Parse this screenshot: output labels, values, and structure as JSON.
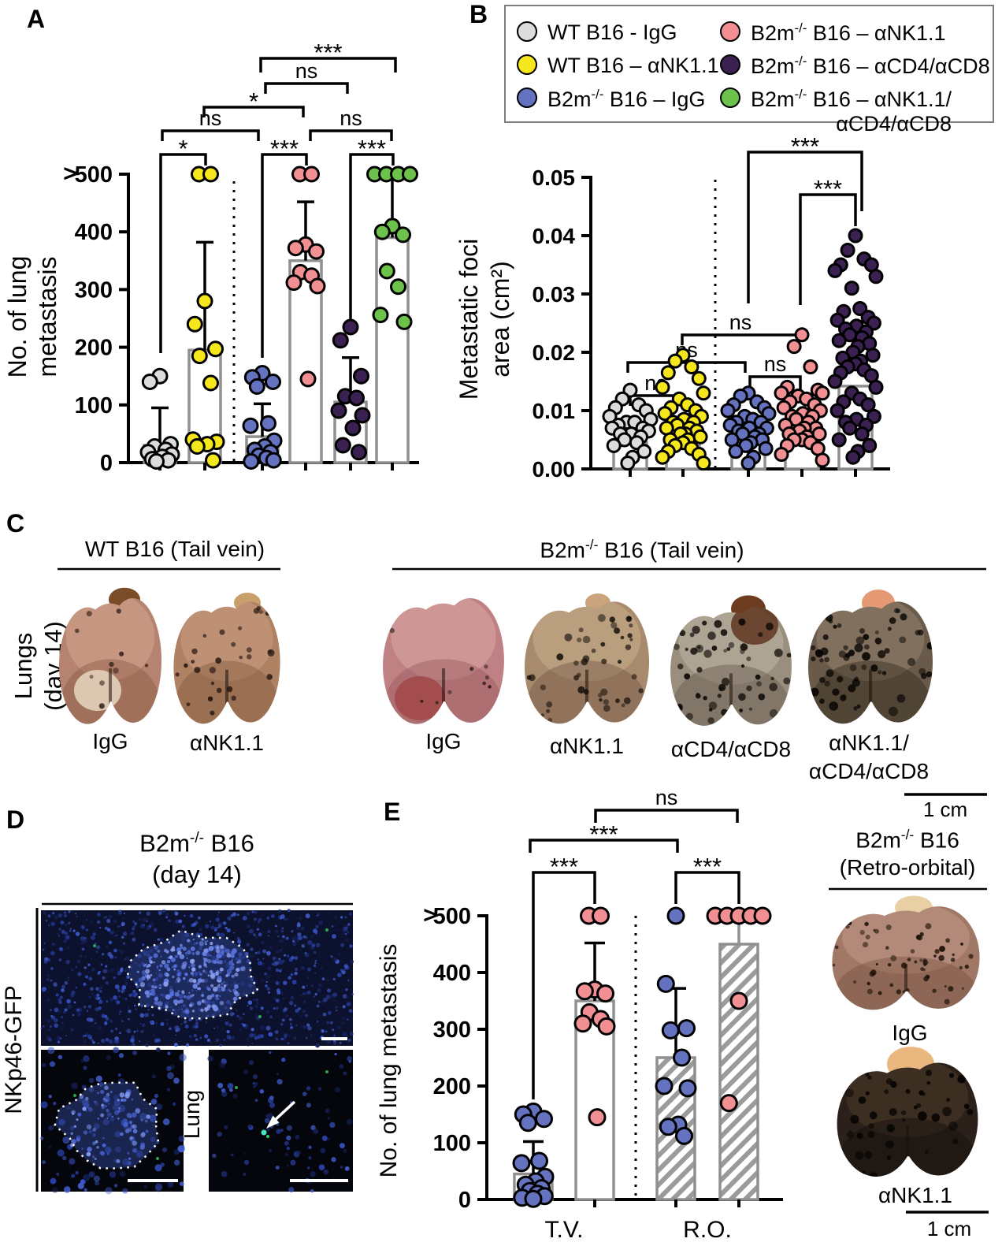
{
  "panels": {
    "a": {
      "letter": "A"
    },
    "b": {
      "letter": "B"
    },
    "c": {
      "letter": "C",
      "row_label": [
        "Lungs",
        "(day 14)"
      ],
      "wt_title": "WT B16 (Tail vein)",
      "b2m_title": {
        "pre": "B2m",
        "sup": "-/-",
        "post": " B16 (Tail vein)"
      },
      "wt_lung_labels": [
        "IgG",
        "αNK1.1"
      ],
      "b2m_lung_labels": [
        "IgG",
        "αNK1.1",
        "αCD4/αCD8",
        "αNK1.1/",
        "αCD4/αCD8"
      ],
      "scale_label": "1 cm"
    },
    "d": {
      "letter": "D",
      "title": {
        "pre": "B2m",
        "sup": "-/-",
        "post": " B16"
      },
      "subtitle": "(day 14)",
      "side_label": "NKp46-GFP",
      "side_label_color": "#2eb34a",
      "lung_label": "Lung"
    },
    "e": {
      "letter": "E",
      "title": {
        "pre": "B2m",
        "sup": "-/-",
        "post": " B16"
      },
      "subtitle": "(Retro-orbital)",
      "lung_labels": [
        "IgG",
        "αNK1.1"
      ],
      "scale_label": "1 cm"
    }
  },
  "legend": {
    "items": [
      {
        "pre": "WT B16 - IgG",
        "sup": "",
        "post": "",
        "color": "#dcdcdc"
      },
      {
        "pre": "WT B16 – αNK1.1",
        "sup": "",
        "post": "",
        "color": "#f6e71d"
      },
      {
        "pre": "B2m",
        "sup": "-/-",
        "post": " B16 – IgG",
        "color": "#6472c0"
      },
      {
        "pre": "B2m",
        "sup": "-/-",
        "post": " B16 – αNK1.1",
        "color": "#f28f93"
      },
      {
        "pre": "B2m",
        "sup": "-/-",
        "post": " B16 – αCD4/αCD8",
        "color": "#3a2152"
      },
      {
        "pre": "B2m",
        "sup": "-/-",
        "post": " B16 – αNK1.1/",
        "wrap": "αCD4/αCD8",
        "color": "#6cc24a"
      }
    ]
  },
  "chart_data": [
    {
      "id": "A",
      "type": "scatter_bar",
      "ylabel": [
        "No. of lung",
        "metastasis"
      ],
      "ylim": [
        0,
        500
      ],
      "yticks": [
        "0",
        "100",
        "200",
        "300",
        "400",
        "500"
      ],
      "over_label": ">",
      "x_categories": [],
      "groups": [
        {
          "name": "WT B16 - IgG",
          "color": "#dcdcdc",
          "bar": 30,
          "whisker": 95,
          "points": [
            150,
            140,
            32,
            28,
            22,
            18,
            14,
            10,
            6,
            4,
            2
          ]
        },
        {
          "name": "WT B16 – αNK1.1",
          "color": "#f6e71d",
          "bar": 195,
          "whisker": 382,
          "points": [
            500,
            500,
            280,
            240,
            197,
            185,
            138,
            40,
            36,
            32,
            28,
            4
          ]
        },
        {
          "name": "B2m-/- B16 – IgG",
          "color": "#6472c0",
          "bar": 45,
          "whisker": 102,
          "points": [
            155,
            148,
            140,
            132,
            68,
            64,
            38,
            28,
            22,
            18,
            12,
            8,
            4,
            2
          ]
        },
        {
          "name": "B2m-/- B16 – αNK1.1",
          "color": "#f28f93",
          "bar": 350,
          "whisker": 452,
          "points": [
            500,
            500,
            378,
            372,
            366,
            330,
            324,
            312,
            306,
            145
          ]
        },
        {
          "name": "B2m-/- B16 – αCD4/αCD8",
          "color": "#3a2152",
          "bar": 105,
          "whisker": 182,
          "points": [
            235,
            212,
            150,
            115,
            112,
            90,
            82,
            60,
            30,
            18
          ]
        },
        {
          "name": "B2m-/- B16 – αNK1.1/αCD4/αCD8",
          "color": "#6cc24a",
          "bar": 390,
          "whisker": 500,
          "points": [
            500,
            500,
            500,
            500,
            410,
            400,
            395,
            332,
            305,
            256,
            244
          ]
        }
      ],
      "significance": [
        {
          "a": 0,
          "b": 1,
          "label": "*"
        },
        {
          "a": 2,
          "b": 3,
          "label": "***"
        },
        {
          "a": 4,
          "b": 5,
          "label": "***"
        },
        {
          "a": 0,
          "b": 2,
          "label": "ns"
        },
        {
          "a": 3,
          "b": 5,
          "label": "ns"
        },
        {
          "a": 1,
          "b": 3,
          "label": "*"
        },
        {
          "a": 2,
          "b": 4,
          "label": "ns"
        },
        {
          "a": 2,
          "b": 5,
          "label": "***"
        }
      ]
    },
    {
      "id": "B",
      "type": "scatter_bar",
      "ylabel": [
        "Metastatic foci",
        "area (cm²)"
      ],
      "ylim": [
        0,
        0.05
      ],
      "yticks": [
        "0.00",
        "0.01",
        "0.02",
        "0.03",
        "0.04",
        "0.05"
      ],
      "x_categories": [],
      "groups": [
        {
          "name": "WT B16 - IgG",
          "color": "#dcdcdc",
          "bar": 0.0045,
          "points": [
            0.0135,
            0.012,
            0.011,
            0.0105,
            0.01,
            0.009,
            0.0085,
            0.008,
            0.008,
            0.0075,
            0.007,
            0.007,
            0.0065,
            0.006,
            0.006,
            0.0055,
            0.005,
            0.0045,
            0.004,
            0.003,
            0.002,
            0.001
          ]
        },
        {
          "name": "WT B16 – αNK1.1",
          "color": "#f6e71d",
          "bar": 0.004,
          "points": [
            0.0195,
            0.0185,
            0.0175,
            0.0165,
            0.0155,
            0.014,
            0.013,
            0.012,
            0.011,
            0.0105,
            0.01,
            0.0095,
            0.009,
            0.0085,
            0.008,
            0.008,
            0.0075,
            0.007,
            0.007,
            0.0065,
            0.006,
            0.006,
            0.0055,
            0.005,
            0.005,
            0.0045,
            0.004,
            0.0035,
            0.003,
            0.0025,
            0.002,
            0.001
          ]
        },
        {
          "name": "B2m-/- B16 – IgG",
          "color": "#6472c0",
          "bar": 0.0045,
          "points": [
            0.013,
            0.0125,
            0.0115,
            0.011,
            0.0105,
            0.01,
            0.0095,
            0.009,
            0.0085,
            0.008,
            0.008,
            0.0075,
            0.007,
            0.007,
            0.0065,
            0.006,
            0.006,
            0.0055,
            0.005,
            0.005,
            0.0045,
            0.004,
            0.0035,
            0.003,
            0.002,
            0.001
          ]
        },
        {
          "name": "B2m-/- B16 – αNK1.1",
          "color": "#f28f93",
          "bar": 0.0075,
          "points": [
            0.023,
            0.021,
            0.0175,
            0.014,
            0.0135,
            0.013,
            0.013,
            0.0125,
            0.012,
            0.0115,
            0.011,
            0.0105,
            0.01,
            0.0095,
            0.009,
            0.009,
            0.0085,
            0.008,
            0.0075,
            0.007,
            0.007,
            0.0065,
            0.006,
            0.006,
            0.0055,
            0.005,
            0.005,
            0.0045,
            0.004,
            0.0035,
            0.0025,
            0.0015
          ]
        },
        {
          "name": "B2m-/- B16 – αCD4/αCD8",
          "color": "#3a2152",
          "bar": 0.0142,
          "points": [
            0.04,
            0.0375,
            0.036,
            0.035,
            0.035,
            0.034,
            0.033,
            0.031,
            0.0275,
            0.027,
            0.026,
            0.0255,
            0.025,
            0.0245,
            0.024,
            0.0235,
            0.023,
            0.0225,
            0.022,
            0.0215,
            0.021,
            0.02,
            0.0195,
            0.019,
            0.0185,
            0.018,
            0.0175,
            0.017,
            0.0165,
            0.016,
            0.015,
            0.014,
            0.013,
            0.012,
            0.0115,
            0.011,
            0.01,
            0.009,
            0.0085,
            0.008,
            0.0075,
            0.007,
            0.006,
            0.005,
            0.004,
            0.003,
            0.002
          ]
        }
      ],
      "significance": [
        {
          "a": 0,
          "b": 1,
          "label": "ns"
        },
        {
          "a": 0,
          "b": 2,
          "label": "ns"
        },
        {
          "a": 1,
          "b": 3,
          "label": "ns"
        },
        {
          "a": 2,
          "b": 3,
          "label": "ns"
        },
        {
          "a": 2,
          "b": 4,
          "label": "***"
        },
        {
          "a": 3,
          "b": 4,
          "label": "***"
        }
      ]
    },
    {
      "id": "E",
      "type": "scatter_bar",
      "ylabel": [
        "No. of lung metastasis"
      ],
      "ylim": [
        0,
        500
      ],
      "yticks": [
        "0",
        "100",
        "200",
        "300",
        "400",
        "500"
      ],
      "over_label": ">",
      "x_categories": [
        "T.V.",
        "R.O."
      ],
      "groups": [
        {
          "name": "B2m-/- B16 – IgG (T.V.)",
          "color": "#6472c0",
          "hatch": false,
          "bar": 45,
          "whisker": 102,
          "points": [
            155,
            150,
            142,
            135,
            68,
            64,
            40,
            32,
            26,
            20,
            15,
            10,
            6,
            3,
            1
          ]
        },
        {
          "name": "B2m-/- B16 – αNK1.1 (T.V.)",
          "color": "#f28f93",
          "hatch": false,
          "bar": 350,
          "whisker": 452,
          "points": [
            500,
            500,
            370,
            367,
            363,
            330,
            318,
            310,
            305,
            145
          ]
        },
        {
          "name": "B2m-/- B16 – IgG (R.O.)",
          "color": "#6472c0",
          "hatch": true,
          "bar": 250,
          "whisker": 372,
          "points": [
            500,
            380,
            302,
            298,
            250,
            200,
            196,
            132,
            128,
            112
          ]
        },
        {
          "name": "B2m-/- B16 – αNK1.1 (R.O.)",
          "color": "#f28f93",
          "hatch": true,
          "bar": 450,
          "whisker": 500,
          "points": [
            500,
            500,
            500,
            500,
            500,
            350,
            170
          ]
        }
      ],
      "significance": [
        {
          "a": 0,
          "b": 1,
          "label": "***"
        },
        {
          "a": 0,
          "b": 2,
          "label": "***"
        },
        {
          "a": 1,
          "b": 3,
          "label": "ns"
        },
        {
          "a": 2,
          "b": 3,
          "label": "***"
        }
      ]
    }
  ]
}
